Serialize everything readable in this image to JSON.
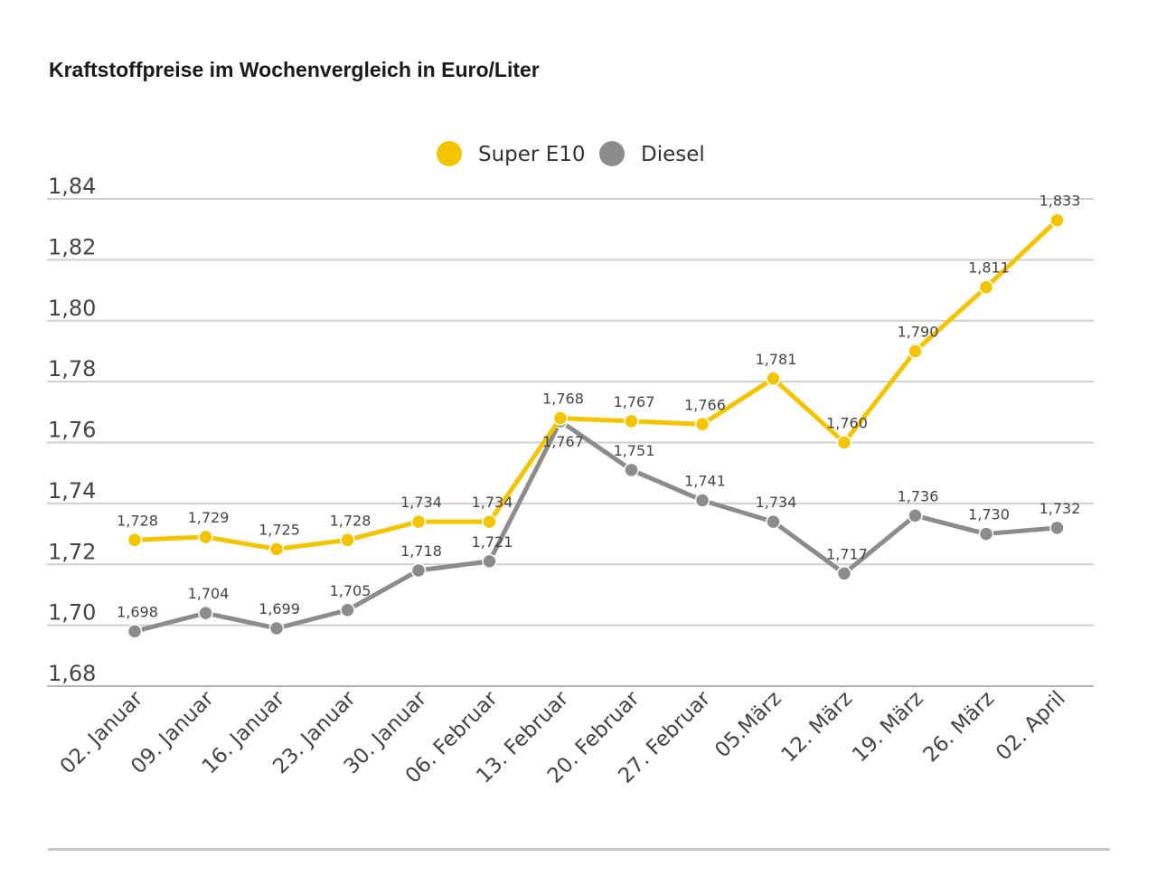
{
  "chart_data": {
    "type": "line",
    "title": "Kraftstoffpreise im Wochenvergleich in Euro/Liter",
    "categories": [
      "02. Januar",
      "09. Januar",
      "16. Januar",
      "23. Januar",
      "30. Januar",
      "06. Februar",
      "13. Februar",
      "20. Februar",
      "27. Februar",
      "05.März",
      "12. März",
      "19. März",
      "26. März",
      "02. April"
    ],
    "series": [
      {
        "name": "Super E10",
        "color": "#f5c400",
        "values": [
          1.728,
          1.729,
          1.725,
          1.728,
          1.734,
          1.734,
          1.768,
          1.767,
          1.766,
          1.781,
          1.76,
          1.79,
          1.811,
          1.833
        ],
        "labels": [
          "1,728",
          "1,729",
          "1,725",
          "1,728",
          "1,734",
          "1,734",
          "1,768",
          "1,767",
          "1,766",
          "1,781",
          "1,760",
          "1,790",
          "1,811",
          "1,833"
        ]
      },
      {
        "name": "Diesel",
        "color": "#8c8c8c",
        "values": [
          1.698,
          1.704,
          1.699,
          1.705,
          1.718,
          1.721,
          1.767,
          1.751,
          1.741,
          1.734,
          1.717,
          1.736,
          1.73,
          1.732
        ],
        "labels": [
          "1,698",
          "1,704",
          "1,699",
          "1,705",
          "1,718",
          "1,721",
          "1,767",
          "1,751",
          "1,741",
          "1,734",
          "1,717",
          "1,736",
          "1,730",
          "1,732"
        ]
      }
    ],
    "yticks": [
      "1,68",
      "1,70",
      "1,72",
      "1,74",
      "1,76",
      "1,78",
      "1,80",
      "1,82",
      "1,84"
    ],
    "ylim": [
      1.68,
      1.84
    ],
    "grid": true,
    "legend": "top-center",
    "xlabel": "",
    "ylabel": ""
  }
}
